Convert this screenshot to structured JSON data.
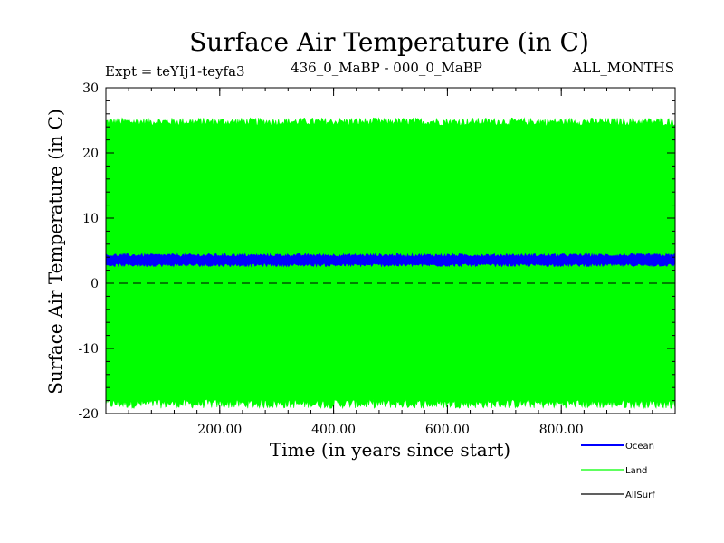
{
  "chart_data": {
    "type": "area",
    "title": "Surface Air Temperature (in C)",
    "subtitle_left": "Expt = teYIj1-teyfa3",
    "subtitle_center": "436_0_MaBP - 000_0_MaBP",
    "subtitle_right": "ALL_MONTHS",
    "xlabel": "Time (in years since start)",
    "ylabel": "Surface Air Temperature (in C)",
    "xlim": [
      0,
      1000
    ],
    "ylim": [
      -20,
      30
    ],
    "xticks": [
      200,
      400,
      600,
      800
    ],
    "xtick_labels": [
      "200.00",
      "400.00",
      "600.00",
      "800.00"
    ],
    "yticks": [
      -20,
      -10,
      0,
      10,
      20,
      30
    ],
    "ytick_labels": [
      "-20",
      "-10",
      "0",
      "10",
      "20",
      "30"
    ],
    "zero_line": 0,
    "series": [
      {
        "name": "Land",
        "color": "#00ff00",
        "min": -18.5,
        "max": 24.8,
        "upper_noise": 0.6,
        "lower_noise": 0.7
      },
      {
        "name": "Ocean",
        "color": "#0000ff",
        "min": 2.8,
        "max": 4.3,
        "upper_noise": 0.25,
        "lower_noise": 0.25
      },
      {
        "name": "AllSurf",
        "color": "#000000"
      }
    ],
    "legend": [
      "Ocean",
      "Land",
      "AllSurf"
    ]
  }
}
